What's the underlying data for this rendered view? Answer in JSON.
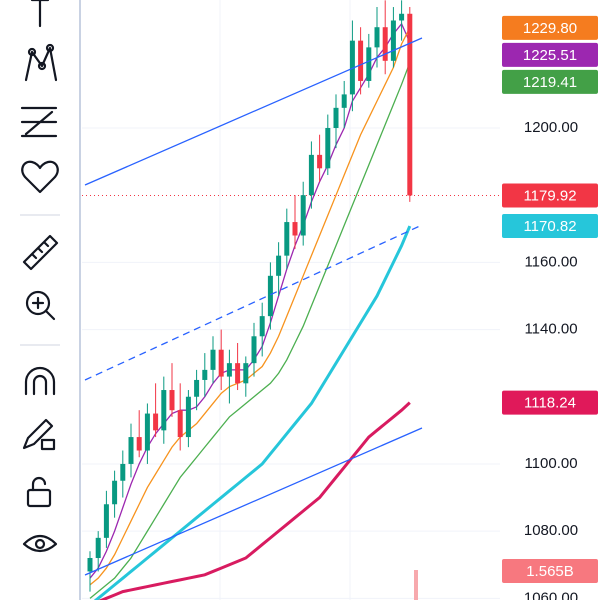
{
  "chart_data": {
    "type": "candlestick",
    "open": [
      1068,
      1072,
      1078,
      1088,
      1095,
      1100,
      1108,
      1104,
      1115,
      1110,
      1122,
      1116,
      1108,
      1120,
      1125,
      1128,
      1134,
      1126,
      1130,
      1124,
      1130,
      1138,
      1144,
      1156,
      1162,
      1172,
      1168,
      1180,
      1192,
      1188,
      1200,
      1206,
      1210,
      1226,
      1214,
      1224,
      1230,
      1220,
      1232,
      1234
    ],
    "high": [
      1074,
      1080,
      1092,
      1098,
      1104,
      1112,
      1116,
      1118,
      1124,
      1126,
      1130,
      1124,
      1122,
      1128,
      1133,
      1138,
      1140,
      1134,
      1136,
      1132,
      1142,
      1148,
      1160,
      1166,
      1176,
      1180,
      1184,
      1196,
      1198,
      1204,
      1210,
      1214,
      1232,
      1230,
      1228,
      1236,
      1238,
      1236,
      1238,
      1236
    ],
    "low": [
      1062,
      1068,
      1075,
      1084,
      1090,
      1096,
      1102,
      1100,
      1108,
      1106,
      1114,
      1104,
      1105,
      1116,
      1120,
      1124,
      1122,
      1118,
      1122,
      1120,
      1126,
      1132,
      1140,
      1150,
      1158,
      1164,
      1165,
      1176,
      1184,
      1186,
      1194,
      1200,
      1205,
      1210,
      1212,
      1218,
      1216,
      1218,
      1226,
      1178
    ],
    "close": [
      1072,
      1078,
      1088,
      1095,
      1100,
      1108,
      1104,
      1115,
      1110,
      1122,
      1116,
      1108,
      1120,
      1125,
      1128,
      1134,
      1126,
      1130,
      1124,
      1130,
      1138,
      1144,
      1156,
      1162,
      1172,
      1168,
      1180,
      1192,
      1188,
      1200,
      1206,
      1210,
      1226,
      1214,
      1224,
      1230,
      1220,
      1232,
      1234,
      1179.92
    ],
    "up_color": "#089981",
    "down_color": "#f23645",
    "series": [
      {
        "color": "#9c27b0",
        "values": [
          1066,
          1069,
          1074,
          1080,
          1087,
          1094,
          1100,
          1105,
          1109,
          1112,
          1115,
          1116,
          1116,
          1117,
          1120,
          1124,
          1127,
          1128,
          1128,
          1128,
          1131,
          1135,
          1142,
          1150,
          1158,
          1165,
          1171,
          1178,
          1184,
          1189,
          1195,
          1200,
          1208,
          1212,
          1216,
          1221,
          1224,
          1228,
          1231,
          1225.51
        ]
      },
      {
        "color": "#f7931e",
        "values": [
          1064,
          1066,
          1069,
          1073,
          1078,
          1083,
          1088,
          1093,
          1097,
          1101,
          1105,
          1108,
          1110,
          1112,
          1115,
          1118,
          1121,
          1123,
          1124,
          1125,
          1127,
          1129,
          1133,
          1138,
          1144,
          1150,
          1156,
          1162,
          1168,
          1174,
          1180,
          1186,
          1192,
          1198,
          1203,
          1208,
          1213,
          1218,
          1225,
          1229.8
        ]
      },
      {
        "color": "#4caf50",
        "values": [
          1060,
          1062,
          1064,
          1066,
          1069,
          1072,
          1076,
          1080,
          1084,
          1088,
          1092,
          1096,
          1099,
          1102,
          1105,
          1108,
          1111,
          1114,
          1116,
          1118,
          1120,
          1122,
          1124,
          1127,
          1131,
          1136,
          1141,
          1147,
          1153,
          1159,
          1165,
          1171,
          1177,
          1183,
          1189,
          1195,
          1201,
          1207,
          1213,
          1219.41
        ]
      },
      {
        "color": "#26c6da",
        "values": [
          1058,
          1060,
          1062,
          1064,
          1066,
          1068,
          1070,
          1072,
          1074,
          1076,
          1078,
          1080,
          1082,
          1084,
          1086,
          1088,
          1090,
          1092,
          1094,
          1096,
          1098,
          1100,
          1103,
          1106,
          1109,
          1112,
          1115,
          1118,
          1122,
          1126,
          1130,
          1134,
          1138,
          1142,
          1146,
          1150,
          1155,
          1160,
          1165,
          1170.82
        ]
      },
      {
        "color": "#d81b60",
        "values": [
          1058,
          1059,
          1060,
          1061,
          1062,
          1062.5,
          1063,
          1063.5,
          1064,
          1064.5,
          1065,
          1065.5,
          1066,
          1066.5,
          1067,
          1068,
          1069,
          1070,
          1071,
          1072,
          1074,
          1076,
          1078,
          1080,
          1082,
          1084,
          1086,
          1088,
          1090,
          1093,
          1096,
          1099,
          1102,
          1105,
          1108,
          1110,
          1112,
          1114,
          1116,
          1118.24
        ]
      }
    ],
    "ylim": [
      1059.5,
      1238.1
    ],
    "yticks": [
      {
        "value": 1200,
        "label": "1200.00"
      },
      {
        "value": 1160,
        "label": "1160.00"
      },
      {
        "value": 1140,
        "label": "1140.00"
      },
      {
        "value": 1100,
        "label": "1100.00"
      },
      {
        "value": 1080,
        "label": "1080.00"
      },
      {
        "value": 1060,
        "label": "1060.00"
      }
    ],
    "price_tags": [
      {
        "value": 1229.8,
        "label": "1229.80",
        "color": "#f57c1f"
      },
      {
        "value": 1225.51,
        "label": "1225.51",
        "color": "#9c27b0"
      },
      {
        "value": 1219.41,
        "label": "1219.41",
        "color": "#43a047"
      },
      {
        "value": 1179.92,
        "label": "1179.92",
        "color": "#f23645"
      },
      {
        "value": 1170.82,
        "label": "1170.82",
        "color": "#26c6da"
      },
      {
        "value": 1118.24,
        "label": "1118.24",
        "color": "#e0195a"
      },
      {
        "value": 1565000000,
        "label": "1.565B",
        "color": "#f7787f"
      }
    ],
    "grid": true
  }
}
